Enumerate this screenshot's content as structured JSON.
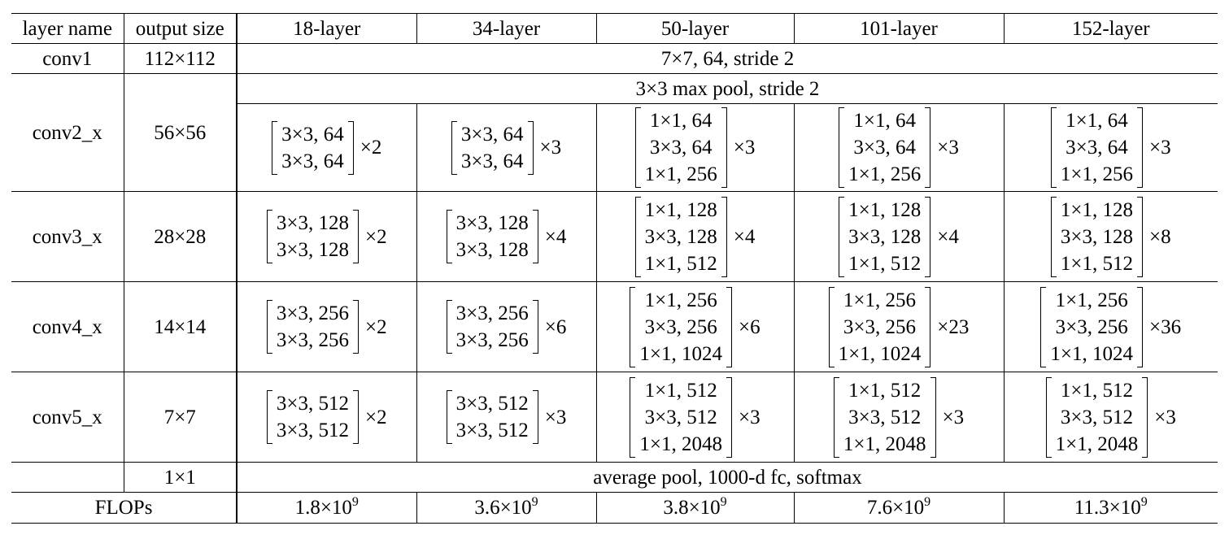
{
  "header": {
    "layer_name": "layer name",
    "output_size": "output size",
    "columns": [
      "18-layer",
      "34-layer",
      "50-layer",
      "101-layer",
      "152-layer"
    ]
  },
  "conv1": {
    "name": "conv1",
    "output": "112×112",
    "spec": "7×7, 64, stride 2"
  },
  "conv2": {
    "name": "conv2_x",
    "output": "56×56",
    "pool": "3×3 max pool, stride 2",
    "blocks": [
      {
        "lines": [
          "3×3, 64",
          "3×3, 64"
        ],
        "mult": "×2"
      },
      {
        "lines": [
          "3×3, 64",
          "3×3, 64"
        ],
        "mult": "×3"
      },
      {
        "lines": [
          "1×1, 64",
          "3×3, 64",
          "1×1, 256"
        ],
        "mult": "×3"
      },
      {
        "lines": [
          "1×1, 64",
          "3×3, 64",
          "1×1, 256"
        ],
        "mult": "×3"
      },
      {
        "lines": [
          "1×1, 64",
          "3×3, 64",
          "1×1, 256"
        ],
        "mult": "×3"
      }
    ]
  },
  "conv3": {
    "name": "conv3_x",
    "output": "28×28",
    "blocks": [
      {
        "lines": [
          "3×3, 128",
          "3×3, 128"
        ],
        "mult": "×2"
      },
      {
        "lines": [
          "3×3, 128",
          "3×3, 128"
        ],
        "mult": "×4"
      },
      {
        "lines": [
          "1×1, 128",
          "3×3, 128",
          "1×1, 512"
        ],
        "mult": "×4"
      },
      {
        "lines": [
          "1×1, 128",
          "3×3, 128",
          "1×1, 512"
        ],
        "mult": "×4"
      },
      {
        "lines": [
          "1×1, 128",
          "3×3, 128",
          "1×1, 512"
        ],
        "mult": "×8"
      }
    ]
  },
  "conv4": {
    "name": "conv4_x",
    "output": "14×14",
    "blocks": [
      {
        "lines": [
          "3×3, 256",
          "3×3, 256"
        ],
        "mult": "×2"
      },
      {
        "lines": [
          "3×3, 256",
          "3×3, 256"
        ],
        "mult": "×6"
      },
      {
        "lines": [
          "1×1, 256",
          "3×3, 256",
          "1×1, 1024"
        ],
        "mult": "×6"
      },
      {
        "lines": [
          "1×1, 256",
          "3×3, 256",
          "1×1, 1024"
        ],
        "mult": "×23"
      },
      {
        "lines": [
          "1×1, 256",
          "3×3, 256",
          "1×1, 1024"
        ],
        "mult": "×36"
      }
    ]
  },
  "conv5": {
    "name": "conv5_x",
    "output": "7×7",
    "blocks": [
      {
        "lines": [
          "3×3, 512",
          "3×3, 512"
        ],
        "mult": "×2"
      },
      {
        "lines": [
          "3×3, 512",
          "3×3, 512"
        ],
        "mult": "×3"
      },
      {
        "lines": [
          "1×1, 512",
          "3×3, 512",
          "1×1, 2048"
        ],
        "mult": "×3"
      },
      {
        "lines": [
          "1×1, 512",
          "3×3, 512",
          "1×1, 2048"
        ],
        "mult": "×3"
      },
      {
        "lines": [
          "1×1, 512",
          "3×3, 512",
          "1×1, 2048"
        ],
        "mult": "×3"
      }
    ]
  },
  "final": {
    "output": "1×1",
    "spec": "average pool, 1000-d fc, softmax"
  },
  "flops": {
    "label": "FLOPs",
    "values": [
      {
        "base": "1.8×10",
        "exp": "9"
      },
      {
        "base": "3.6×10",
        "exp": "9"
      },
      {
        "base": "3.8×10",
        "exp": "9"
      },
      {
        "base": "7.6×10",
        "exp": "9"
      },
      {
        "base": "11.3×10",
        "exp": "9"
      }
    ]
  }
}
